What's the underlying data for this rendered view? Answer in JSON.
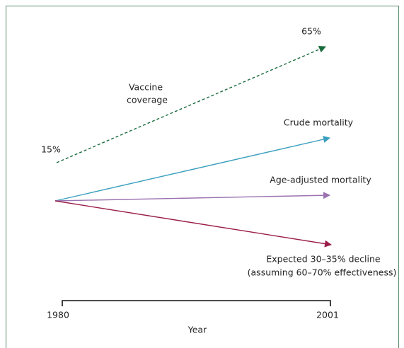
{
  "labels": {
    "vaccine_end": "65%",
    "vaccine_start": "15%",
    "vaccine_name": [
      "Vaccine",
      "coverage"
    ],
    "crude": "Crude mortality",
    "age_adjusted": "Age-adjusted mortality",
    "expected": [
      "Expected 30–35% decline",
      "(assuming 60–70% effectiveness)"
    ]
  },
  "axis": {
    "start": "1980",
    "end": "2001",
    "title": "Year"
  }
}
